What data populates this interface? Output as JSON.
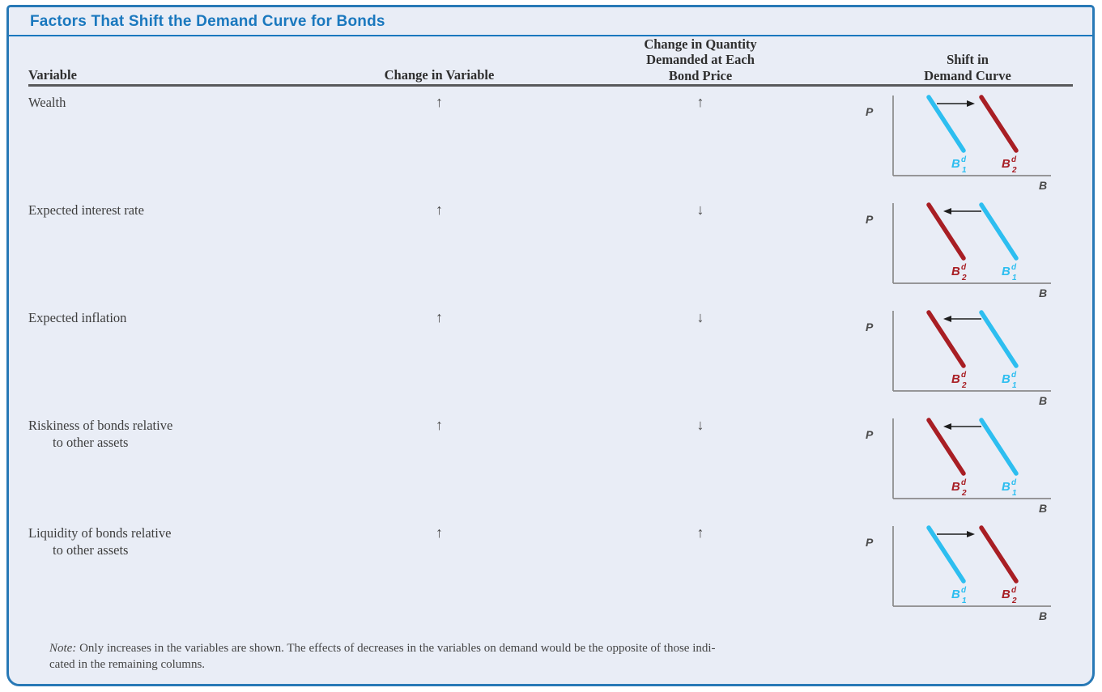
{
  "title": "Factors That Shift the Demand Curve for Bonds",
  "colors": {
    "accent_blue": "#1A78BE",
    "frame_border": "#2879B6",
    "background": "#E9EDF6",
    "curve_b1": "#2DBEF0",
    "curve_b2": "#A81E24",
    "axis_gray": "#8A8A8A",
    "diagram_text": "#4A4A4A",
    "arrow_black": "#1E1E1E"
  },
  "table": {
    "headers": {
      "variable": "Variable",
      "change_in_variable": "Change in Variable",
      "change_in_quantity_line1": "Change in Quantity",
      "change_in_quantity_line2": "Demanded at Each",
      "change_in_quantity_line3": "Bond Price",
      "shift_line1": "Shift in",
      "shift_line2": "Demand Curve"
    },
    "rows": [
      {
        "variable_line1": "Wealth",
        "variable_line2": "",
        "change_in_variable": "↑",
        "change_in_quantity": "↑",
        "shift_direction": "right"
      },
      {
        "variable_line1": "Expected interest rate",
        "variable_line2": "",
        "change_in_variable": "↑",
        "change_in_quantity": "↓",
        "shift_direction": "left"
      },
      {
        "variable_line1": "Expected inflation",
        "variable_line2": "",
        "change_in_variable": "↑",
        "change_in_quantity": "↓",
        "shift_direction": "left"
      },
      {
        "variable_line1": "Riskiness of bonds relative",
        "variable_line2": "to other assets",
        "change_in_variable": "↑",
        "change_in_quantity": "↓",
        "shift_direction": "left"
      },
      {
        "variable_line1": "Liquidity of bonds relative",
        "variable_line2": "to other assets",
        "change_in_variable": "↑",
        "change_in_quantity": "↑",
        "shift_direction": "right"
      }
    ]
  },
  "diagram": {
    "y_axis_label": "P",
    "x_axis_label": "B",
    "curve1_label": {
      "base": "B",
      "sup": "d",
      "sub": "1"
    },
    "curve2_label": {
      "base": "B",
      "sup": "d",
      "sub": "2"
    }
  },
  "note": {
    "label": "Note:",
    "line1": "Only increases in the variables are shown. The effects of decreases in the variables on demand would be the opposite of those indi-",
    "line2": "cated in the remaining columns."
  }
}
